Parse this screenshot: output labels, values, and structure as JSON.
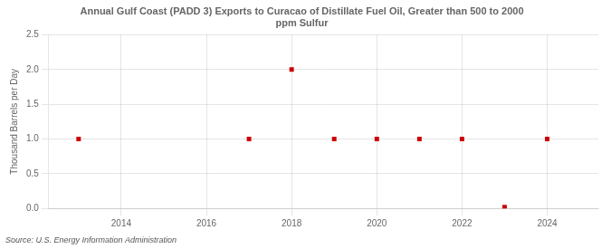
{
  "chart_data": {
    "type": "scatter",
    "title": "Annual Gulf Coast (PADD 3) Exports to Curacao of Distillate Fuel Oil, Greater than 500 to 2000\nppm Sulfur",
    "ylabel": "Thousand Barrels per Day",
    "source": "Source: U.S. Energy Information Administration",
    "x": [
      2013,
      2017,
      2018,
      2019,
      2020,
      2021,
      2022,
      2023,
      2024
    ],
    "values": [
      1.0,
      1.0,
      2.0,
      1.0,
      1.0,
      1.0,
      1.0,
      0.02,
      1.0
    ],
    "color": "#cc0000",
    "marker": "square",
    "xlim": [
      2012.3,
      2025.2
    ],
    "xticks": [
      2014,
      2016,
      2018,
      2020,
      2022,
      2024
    ],
    "ylim": [
      0.0,
      2.5
    ],
    "yticks": [
      {
        "value": 0,
        "label": "0.0"
      },
      0.5,
      {
        "value": 1,
        "label": "1.0"
      },
      1.5,
      {
        "value": 2,
        "label": "2.0"
      },
      2.5
    ],
    "grid": true
  }
}
